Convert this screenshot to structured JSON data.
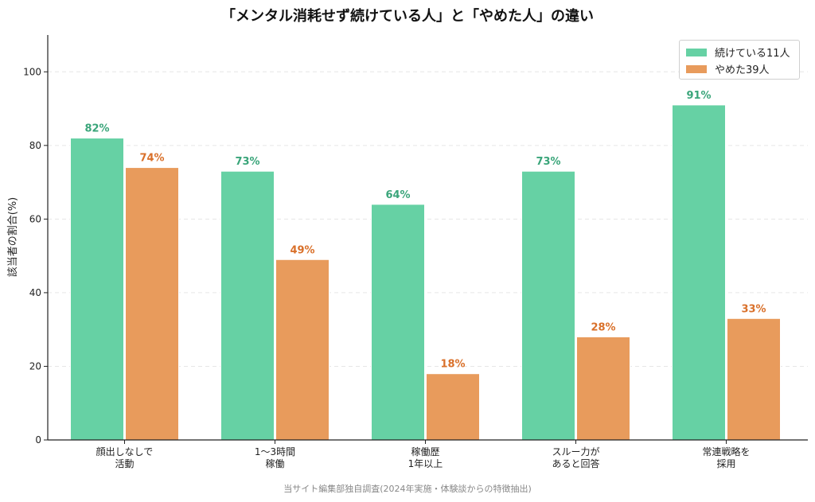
{
  "title": "「メンタル消耗せず続けている人」と「やめた人」の違い",
  "caption": "当サイト編集部独自調査(2024年実施・体験談からの特徴抽出)",
  "chart_data": {
    "type": "bar",
    "categories": [
      [
        "顔出しなしで",
        "活動"
      ],
      [
        "1〜3時間",
        "稼働"
      ],
      [
        "稼働歴",
        "1年以上"
      ],
      [
        "スルー力が",
        "あると回答"
      ],
      [
        "常連戦略を",
        "採用"
      ]
    ],
    "series": [
      {
        "name": "続けている11人",
        "values": [
          82,
          73,
          64,
          73,
          91
        ],
        "color": "#66d1a4",
        "label_color": "#3aa57a"
      },
      {
        "name": "やめた39人",
        "values": [
          74,
          49,
          18,
          28,
          33
        ],
        "color": "#e89b5c",
        "label_color": "#d9702a"
      }
    ],
    "value_suffix": "%",
    "ylabel": "該当者の割合(%)",
    "xlabel": "",
    "ylim": [
      0,
      110
    ],
    "yticks": [
      0,
      20,
      40,
      60,
      80,
      100
    ],
    "grid": "horizontal-dashed",
    "legend_position": "top-right"
  }
}
